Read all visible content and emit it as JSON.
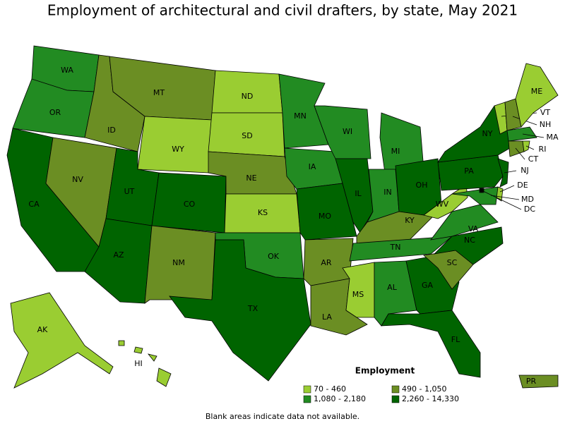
{
  "title": "Employment of architectural and civil drafters, by state, May 2021",
  "legend": {
    "title": "Employment",
    "items": [
      {
        "label": "70 - 460",
        "color": "#9acd32"
      },
      {
        "label": "490 - 1,050",
        "color": "#6b8e23"
      },
      {
        "label": "1,080 - 2,180",
        "color": "#228b22"
      },
      {
        "label": "2,260 - 14,330",
        "color": "#006400"
      }
    ]
  },
  "states": [
    {
      "name": "WA",
      "range": 2
    },
    {
      "name": "OR",
      "range": 2
    },
    {
      "name": "CA",
      "range": 3
    },
    {
      "name": "NV",
      "range": 1
    },
    {
      "name": "ID",
      "range": 1
    },
    {
      "name": "MT",
      "range": 1
    },
    {
      "name": "WY",
      "range": 0
    },
    {
      "name": "UT",
      "range": 3
    },
    {
      "name": "AZ",
      "range": 3
    },
    {
      "name": "CO",
      "range": 3
    },
    {
      "name": "NM",
      "range": 1
    },
    {
      "name": "ND",
      "range": 0
    },
    {
      "name": "SD",
      "range": 0
    },
    {
      "name": "NE",
      "range": 1
    },
    {
      "name": "KS",
      "range": 0
    },
    {
      "name": "OK",
      "range": 2
    },
    {
      "name": "TX",
      "range": 3
    },
    {
      "name": "MN",
      "range": 2
    },
    {
      "name": "IA",
      "range": 2
    },
    {
      "name": "MO",
      "range": 3
    },
    {
      "name": "AR",
      "range": 1
    },
    {
      "name": "LA",
      "range": 1
    },
    {
      "name": "WI",
      "range": 2
    },
    {
      "name": "IL",
      "range": 3
    },
    {
      "name": "MI",
      "range": 2
    },
    {
      "name": "IN",
      "range": 2
    },
    {
      "name": "OH",
      "range": 3
    },
    {
      "name": "KY",
      "range": 1
    },
    {
      "name": "TN",
      "range": 2
    },
    {
      "name": "MS",
      "range": 0
    },
    {
      "name": "AL",
      "range": 2
    },
    {
      "name": "GA",
      "range": 3
    },
    {
      "name": "FL",
      "range": 3
    },
    {
      "name": "SC",
      "range": 1
    },
    {
      "name": "NC",
      "range": 3
    },
    {
      "name": "VA",
      "range": 2
    },
    {
      "name": "WV",
      "range": 0
    },
    {
      "name": "PA",
      "range": 3
    },
    {
      "name": "NY",
      "range": 3
    },
    {
      "name": "VT",
      "range": 0
    },
    {
      "name": "NH",
      "range": 1
    },
    {
      "name": "ME",
      "range": 0
    },
    {
      "name": "MA",
      "range": 2
    },
    {
      "name": "CT",
      "range": 1
    },
    {
      "name": "RI",
      "range": 0
    },
    {
      "name": "NJ",
      "range": 3
    },
    {
      "name": "DE",
      "range": 0
    },
    {
      "name": "MD",
      "range": 2
    },
    {
      "name": "DC",
      "range": 3
    },
    {
      "name": "AK",
      "range": 0
    },
    {
      "name": "HI",
      "range": 0
    },
    {
      "name": "PR",
      "range": 1
    }
  ],
  "footnote": "Blank areas indicate data not available."
}
